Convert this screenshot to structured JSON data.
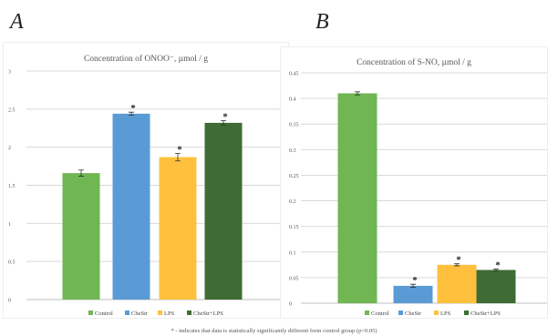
{
  "panels": {
    "a_letter": "A",
    "b_letter": "B"
  },
  "footnote": "* - indicates that data is statistically significantly different form control group (p<0.05)",
  "colors": {
    "control": "#70b653",
    "chestr": "#5b9bd5",
    "lps": "#ffc13d",
    "chestr_lps": "#3f6c34",
    "grid": "#d9d9d9"
  },
  "chart_data": [
    {
      "type": "bar",
      "title": "Concentration of ONOO⁻, µmol / g",
      "categories": [
        "Control",
        "CheStr",
        "LPS",
        "CheStr+LPS"
      ],
      "values": [
        1.66,
        2.44,
        1.87,
        2.32
      ],
      "errors": [
        0.04,
        0.02,
        0.05,
        0.03
      ],
      "significant": [
        false,
        true,
        true,
        true
      ],
      "ylim": [
        0,
        3
      ],
      "yticks": [
        0,
        0.5,
        1,
        1.5,
        2,
        2.5,
        3
      ],
      "yticklabels": [
        "0",
        "0.5",
        "1",
        "1.5",
        "2",
        "2.5",
        "3"
      ],
      "legend": [
        "Control",
        "CheStr",
        "LPS",
        "CheStr+LPS"
      ],
      "legend_position": "bottom",
      "grid": true,
      "xlabel": "",
      "ylabel": ""
    },
    {
      "type": "bar",
      "title": "Concentration of S-NO, µmol / g",
      "categories": [
        "Control",
        "CheStr",
        "LPS",
        "CheStr+LPS"
      ],
      "values": [
        0.41,
        0.034,
        0.075,
        0.065
      ],
      "errors": [
        0.003,
        0.003,
        0.002,
        0.002
      ],
      "significant": [
        false,
        true,
        true,
        true
      ],
      "ylim": [
        0,
        0.45
      ],
      "yticks": [
        0,
        0.05,
        0.1,
        0.15,
        0.2,
        0.25,
        0.3,
        0.35,
        0.4,
        0.45
      ],
      "yticklabels": [
        "0",
        "0.05",
        "0.1",
        "0.15",
        "0.2",
        "0.25",
        "0.3",
        "0.35",
        "0.4",
        "0.45"
      ],
      "legend": [
        "Control",
        "CheStr",
        "LPS",
        "CheStr+LPS"
      ],
      "legend_position": "bottom",
      "grid": true,
      "xlabel": "",
      "ylabel": ""
    }
  ]
}
